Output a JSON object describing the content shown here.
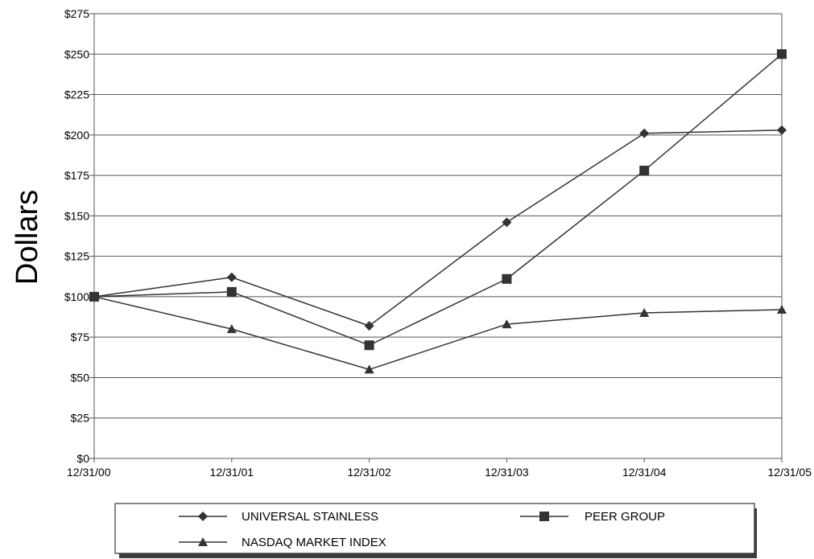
{
  "chart_data": {
    "type": "line",
    "title": "",
    "xlabel": "",
    "ylabel": "Dollars",
    "categories": [
      "12/31/00",
      "12/31/01",
      "12/31/02",
      "12/31/03",
      "12/31/04",
      "12/31/05"
    ],
    "ylim": [
      0,
      275
    ],
    "yticks": [
      0,
      25,
      50,
      75,
      100,
      125,
      150,
      175,
      200,
      225,
      250,
      275
    ],
    "ytick_labels": [
      "$0",
      "$25",
      "$50",
      "$75",
      "$100",
      "$125",
      "$150",
      "$175",
      "$200",
      "$225",
      "$250",
      "$275"
    ],
    "grid": "horizontal",
    "legend_position": "bottom",
    "series": [
      {
        "name": "UNIVERSAL STAINLESS",
        "marker": "diamond",
        "values": [
          100,
          112,
          82,
          146,
          201,
          203
        ]
      },
      {
        "name": "PEER GROUP",
        "marker": "square",
        "values": [
          100,
          103,
          70,
          111,
          178,
          250
        ]
      },
      {
        "name": "NASDAQ MARKET INDEX",
        "marker": "triangle",
        "values": [
          100,
          80,
          55,
          83,
          90,
          92
        ]
      }
    ],
    "line_color": "#333333",
    "grid_color": "#555555"
  }
}
